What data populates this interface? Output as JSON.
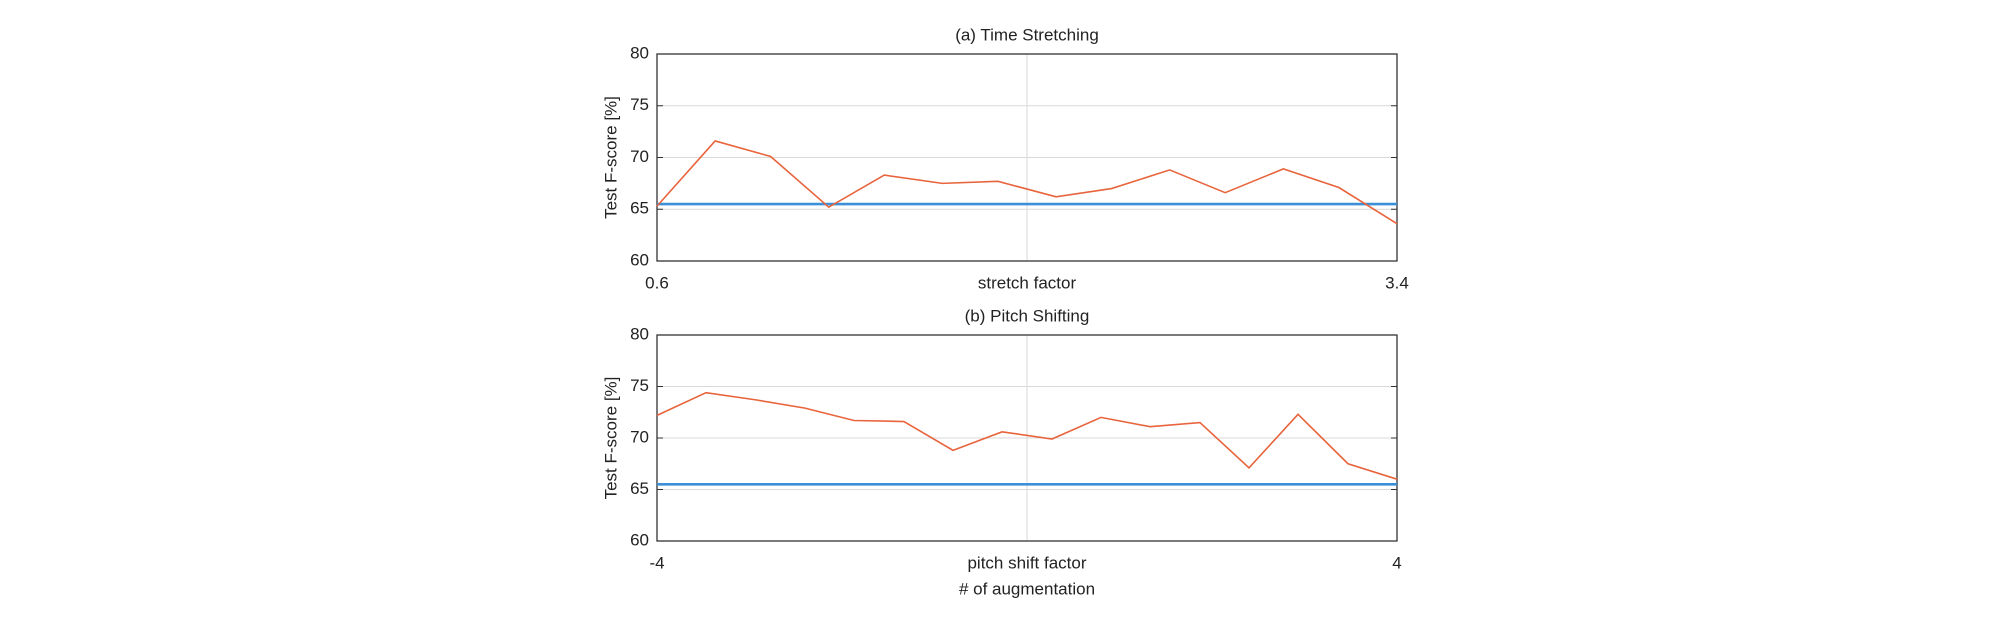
{
  "chart_data": [
    {
      "type": "line",
      "title": "(a) Time Stretching",
      "xlabel": "stretch factor",
      "ylabel": "Test F-score [%]",
      "x": [
        0.6,
        0.82,
        1.03,
        1.25,
        1.46,
        1.68,
        1.89,
        2.11,
        2.32,
        2.54,
        2.75,
        2.97,
        3.18,
        3.4
      ],
      "series": [
        {
          "color": "#e8643c",
          "values": [
            65.3,
            71.6,
            70.1,
            65.2,
            68.3,
            67.5,
            67.7,
            66.2,
            67.0,
            68.8,
            66.6,
            68.9,
            67.1,
            63.6
          ]
        }
      ],
      "hline": {
        "value": 65.5,
        "color": "#3a8fd6"
      },
      "xlim": [
        0.6,
        3.4
      ],
      "xticks": [
        0.6,
        3.4
      ],
      "ylim": [
        60,
        80
      ],
      "yticks": [
        60,
        65,
        70,
        75,
        80
      ],
      "grid": true
    },
    {
      "type": "line",
      "title": "(b) Pitch Shifting",
      "xlabel": "pitch shift factor",
      "ylabel": "Test F-score [%]",
      "x": [
        -4,
        -3.47,
        -2.93,
        -2.4,
        -1.87,
        -1.33,
        -0.8,
        -0.27,
        0.27,
        0.8,
        1.33,
        1.87,
        2.4,
        2.93,
        3.47,
        4
      ],
      "series": [
        {
          "color": "#e8643c",
          "values": [
            72.2,
            74.4,
            73.7,
            72.9,
            71.7,
            71.6,
            68.8,
            70.6,
            69.9,
            72.0,
            71.1,
            71.5,
            67.1,
            72.3,
            67.5,
            66.0
          ]
        }
      ],
      "hline": {
        "value": 65.5,
        "color": "#3a8fd6"
      },
      "xlim": [
        -4,
        4
      ],
      "xticks": [
        -4,
        4
      ],
      "ylim": [
        60,
        80
      ],
      "yticks": [
        60,
        65,
        70,
        75,
        80
      ],
      "grid": true
    }
  ],
  "caption": "# of augmentation"
}
